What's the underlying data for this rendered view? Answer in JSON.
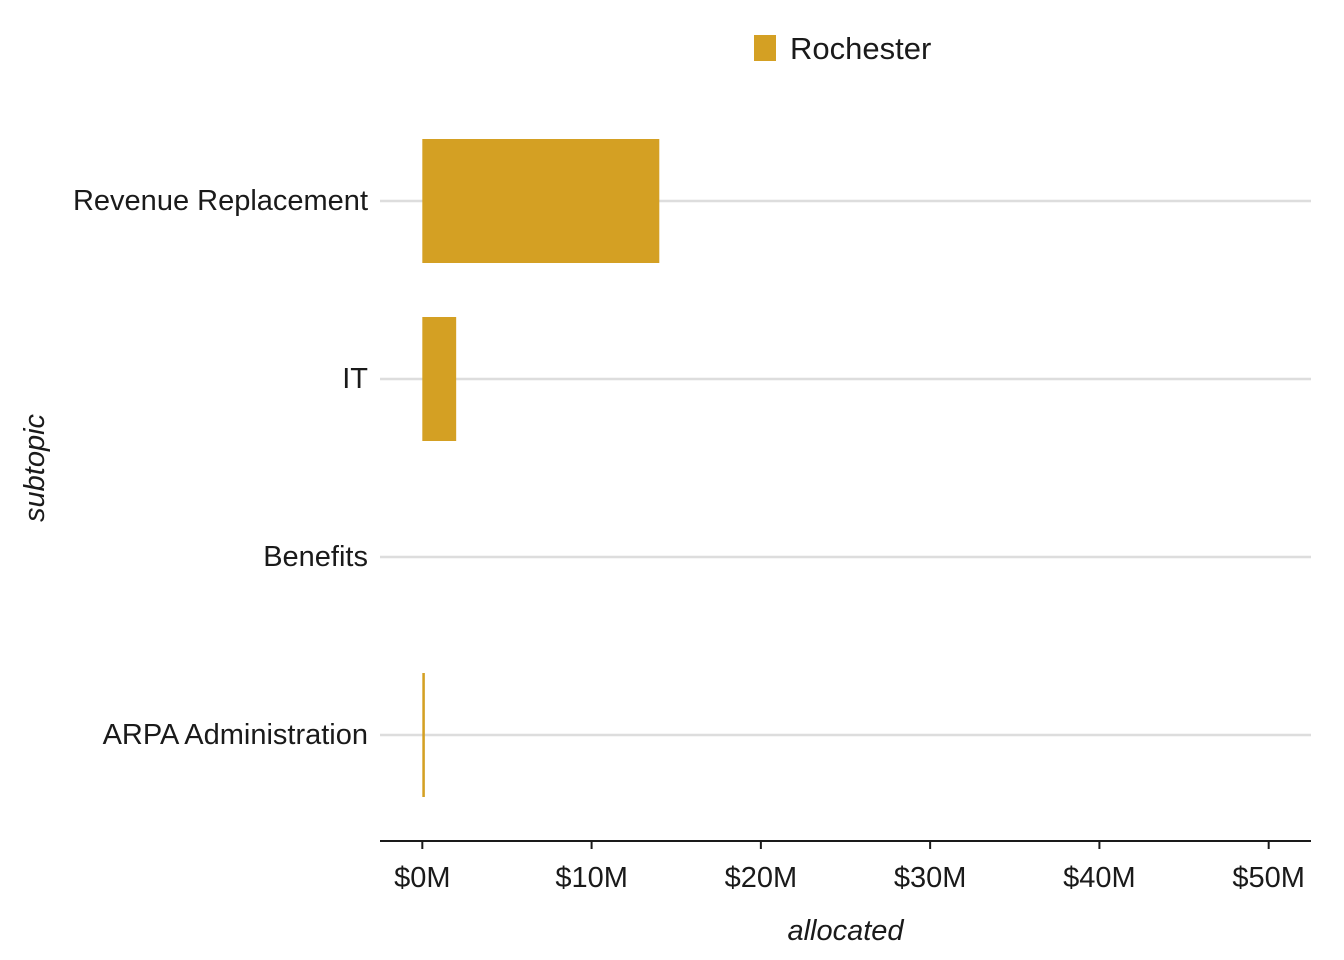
{
  "chart_data": {
    "type": "bar",
    "orientation": "horizontal",
    "categories": [
      "Revenue Replacement",
      "IT",
      "Benefits",
      "ARPA Administration"
    ],
    "series": [
      {
        "name": "Rochester",
        "color": "#D4A023",
        "values": [
          14,
          2,
          0,
          0.15
        ]
      }
    ],
    "xlabel": "allocated",
    "ylabel": "subtopic",
    "xlim": [
      -2.5,
      52.5
    ],
    "xticks": [
      0,
      10,
      20,
      30,
      40,
      50
    ],
    "xtick_labels": [
      "$0M",
      "$10M",
      "$20M",
      "$30M",
      "$40M",
      "$50M"
    ],
    "x_unit": "millions of dollars",
    "grid": {
      "horizontal": true,
      "vertical": false,
      "color": "#dddddd"
    },
    "legend": {
      "position": "top",
      "entries": [
        "Rochester"
      ]
    }
  }
}
